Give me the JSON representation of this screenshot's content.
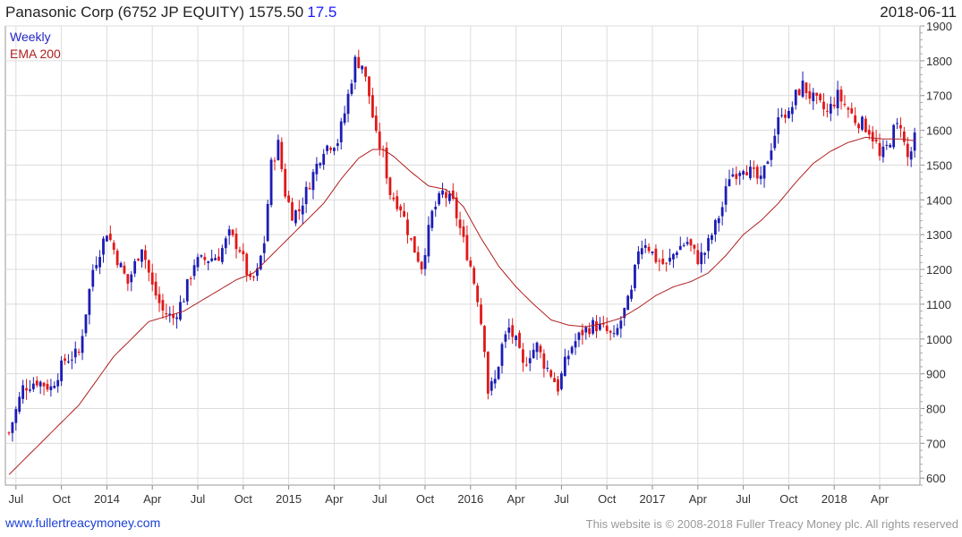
{
  "header": {
    "security": "Panasonic Corp (6752 JP EQUITY) 1575.50",
    "change": "17.5",
    "date": "2018-06-11"
  },
  "legend": {
    "weekly": "Weekly",
    "ema": "EMA 200"
  },
  "footer": {
    "website": "www.fullertreacymoney.com",
    "copyright": "This website is © 2008-2018 Fuller Treacy Money plc. All rights reserved"
  },
  "colors": {
    "up": "#1c1cb4",
    "down": "#e01818",
    "ema": "#b02020",
    "grid": "#dcdcdc"
  },
  "chart_data": {
    "type": "candlestick",
    "interval": "weekly",
    "y_range": [
      580,
      1900
    ],
    "y_ticks": [
      600,
      700,
      800,
      900,
      1000,
      1100,
      1200,
      1300,
      1400,
      1500,
      1600,
      1700,
      1800,
      1900
    ],
    "x_labels": [
      "Jul",
      "Oct",
      "2014",
      "Apr",
      "Jul",
      "Oct",
      "2015",
      "Apr",
      "Jul",
      "Oct",
      "2016",
      "Apr",
      "Jul",
      "Oct",
      "2017",
      "Apr",
      "Jul",
      "Oct",
      "2018",
      "Apr"
    ],
    "x_label_weeks": [
      2,
      15,
      28,
      41,
      54,
      67,
      80,
      93,
      106,
      119,
      132,
      145,
      158,
      171,
      184,
      197,
      210,
      223,
      236,
      249
    ],
    "close_anchors": [
      [
        0,
        730
      ],
      [
        4,
        860
      ],
      [
        8,
        880
      ],
      [
        12,
        860
      ],
      [
        16,
        940
      ],
      [
        20,
        960
      ],
      [
        24,
        1200
      ],
      [
        28,
        1310
      ],
      [
        31,
        1230
      ],
      [
        34,
        1160
      ],
      [
        38,
        1270
      ],
      [
        41,
        1150
      ],
      [
        44,
        1080
      ],
      [
        47,
        1060
      ],
      [
        50,
        1120
      ],
      [
        53,
        1220
      ],
      [
        57,
        1230
      ],
      [
        60,
        1240
      ],
      [
        63,
        1300
      ],
      [
        66,
        1260
      ],
      [
        69,
        1160
      ],
      [
        71,
        1190
      ],
      [
        73,
        1280
      ],
      [
        75,
        1500
      ],
      [
        77,
        1560
      ],
      [
        79,
        1420
      ],
      [
        81,
        1360
      ],
      [
        83,
        1370
      ],
      [
        86,
        1450
      ],
      [
        90,
        1550
      ],
      [
        94,
        1570
      ],
      [
        96,
        1650
      ],
      [
        99,
        1800
      ],
      [
        101,
        1790
      ],
      [
        103,
        1700
      ],
      [
        105,
        1580
      ],
      [
        107,
        1530
      ],
      [
        109,
        1420
      ],
      [
        112,
        1380
      ],
      [
        115,
        1280
      ],
      [
        118,
        1210
      ],
      [
        121,
        1360
      ],
      [
        124,
        1420
      ],
      [
        127,
        1390
      ],
      [
        130,
        1280
      ],
      [
        132,
        1210
      ],
      [
        134,
        1120
      ],
      [
        136,
        980
      ],
      [
        137,
        850
      ],
      [
        139,
        880
      ],
      [
        141,
        980
      ],
      [
        143,
        1030
      ],
      [
        145,
        990
      ],
      [
        147,
        920
      ],
      [
        149,
        960
      ],
      [
        151,
        980
      ],
      [
        153,
        930
      ],
      [
        155,
        900
      ],
      [
        157,
        860
      ],
      [
        159,
        930
      ],
      [
        161,
        980
      ],
      [
        164,
        1020
      ],
      [
        167,
        1040
      ],
      [
        170,
        1030
      ],
      [
        173,
        1000
      ],
      [
        176,
        1080
      ],
      [
        178,
        1130
      ],
      [
        180,
        1260
      ],
      [
        182,
        1280
      ],
      [
        185,
        1230
      ],
      [
        188,
        1210
      ],
      [
        191,
        1260
      ],
      [
        194,
        1280
      ],
      [
        197,
        1230
      ],
      [
        199,
        1250
      ],
      [
        201,
        1300
      ],
      [
        204,
        1380
      ],
      [
        206,
        1470
      ],
      [
        208,
        1480
      ],
      [
        210,
        1500
      ],
      [
        213,
        1470
      ],
      [
        215,
        1450
      ],
      [
        217,
        1520
      ],
      [
        219,
        1590
      ],
      [
        221,
        1660
      ],
      [
        223,
        1640
      ],
      [
        225,
        1700
      ],
      [
        227,
        1730
      ],
      [
        229,
        1700
      ],
      [
        231,
        1680
      ],
      [
        234,
        1650
      ],
      [
        237,
        1700
      ],
      [
        240,
        1660
      ],
      [
        242,
        1630
      ],
      [
        244,
        1620
      ],
      [
        246,
        1600
      ],
      [
        248,
        1560
      ],
      [
        249,
        1520
      ],
      [
        251,
        1550
      ],
      [
        253,
        1600
      ],
      [
        255,
        1620
      ],
      [
        256,
        1560
      ],
      [
        257,
        1520
      ],
      [
        258,
        1540
      ],
      [
        259,
        1575
      ]
    ],
    "ema200_anchors": [
      [
        0,
        610
      ],
      [
        10,
        710
      ],
      [
        20,
        810
      ],
      [
        30,
        950
      ],
      [
        40,
        1050
      ],
      [
        50,
        1080
      ],
      [
        55,
        1110
      ],
      [
        60,
        1140
      ],
      [
        65,
        1170
      ],
      [
        70,
        1190
      ],
      [
        75,
        1240
      ],
      [
        80,
        1290
      ],
      [
        85,
        1340
      ],
      [
        90,
        1390
      ],
      [
        95,
        1460
      ],
      [
        100,
        1520
      ],
      [
        104,
        1545
      ],
      [
        107,
        1545
      ],
      [
        110,
        1525
      ],
      [
        115,
        1480
      ],
      [
        120,
        1440
      ],
      [
        125,
        1430
      ],
      [
        130,
        1380
      ],
      [
        135,
        1290
      ],
      [
        140,
        1210
      ],
      [
        145,
        1150
      ],
      [
        150,
        1100
      ],
      [
        155,
        1055
      ],
      [
        160,
        1040
      ],
      [
        165,
        1035
      ],
      [
        170,
        1045
      ],
      [
        175,
        1060
      ],
      [
        180,
        1090
      ],
      [
        185,
        1125
      ],
      [
        190,
        1150
      ],
      [
        195,
        1165
      ],
      [
        200,
        1190
      ],
      [
        205,
        1240
      ],
      [
        210,
        1300
      ],
      [
        215,
        1340
      ],
      [
        220,
        1390
      ],
      [
        225,
        1450
      ],
      [
        230,
        1505
      ],
      [
        235,
        1540
      ],
      [
        240,
        1565
      ],
      [
        245,
        1580
      ],
      [
        250,
        1575
      ],
      [
        255,
        1575
      ],
      [
        259,
        1570
      ]
    ]
  }
}
